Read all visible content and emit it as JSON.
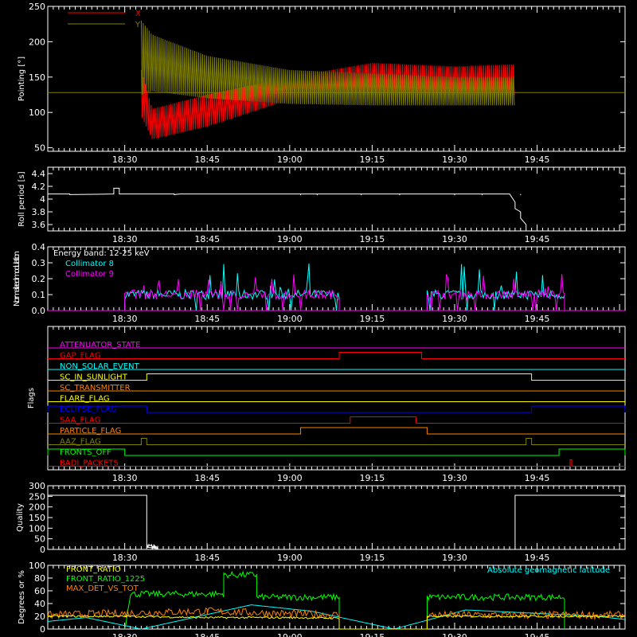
{
  "time_ticks": [
    "18:30",
    "18:45",
    "19:00",
    "19:15",
    "19:30",
    "19:45"
  ],
  "chart_data": [
    {
      "id": "pointing",
      "type": "line",
      "ylabel": "Pointing [°]",
      "ylim": [
        45,
        250
      ],
      "yticks": [
        50,
        100,
        150,
        200,
        250
      ],
      "xlim": [
        "18:16",
        "20:01"
      ],
      "series": [
        {
          "name": "X",
          "color": "#ff0000",
          "envelope": {
            "x": [
              "18:33",
              "18:35",
              "18:45",
              "19:00",
              "19:15",
              "19:30",
              "19:41"
            ],
            "max": [
              160,
              105,
              125,
              150,
              170,
              165,
              168
            ],
            "min": [
              95,
              62,
              80,
              118,
              130,
              125,
              125
            ]
          }
        },
        {
          "name": "Y",
          "color": "#808000",
          "envelope": {
            "x": [
              "18:33",
              "18:35",
              "18:45",
              "19:00",
              "19:15",
              "19:30",
              "19:41"
            ],
            "max": [
              230,
              210,
              180,
              160,
              155,
              150,
              150
            ],
            "min": [
              125,
              130,
              120,
              112,
              110,
              110,
              110
            ]
          }
        }
      ],
      "reference_line": {
        "value": 128,
        "color": "#808000"
      }
    },
    {
      "id": "roll",
      "type": "line",
      "ylabel": "Roll period [s]",
      "ylim": [
        3.5,
        4.5
      ],
      "yticks": [
        3.6,
        3.8,
        4.0,
        4.2,
        4.4
      ],
      "series": [
        {
          "name": "",
          "color": "#ffffff",
          "x": [
            "18:16",
            "18:20",
            "18:20",
            "18:28",
            "18:28",
            "18:28",
            "18:29",
            "18:29",
            "18:39",
            "18:39",
            "18:40",
            "19:40",
            "19:41",
            "19:41",
            "19:42",
            "19:42",
            "19:43",
            "19:43"
          ],
          "y": [
            4.08,
            4.08,
            4.07,
            4.08,
            4.17,
            4.17,
            4.17,
            4.08,
            4.08,
            4.07,
            4.08,
            4.08,
            3.95,
            3.85,
            3.8,
            3.7,
            3.6,
            3.55
          ]
        }
      ]
    },
    {
      "id": "modulation",
      "type": "line",
      "ylabel": "Normalized modulation",
      "ylim": [
        0,
        0.4
      ],
      "yticks": [
        "0.0",
        "0.1",
        "0.2",
        "0.3",
        "0.4"
      ],
      "annotations": [
        "Energy band: 12-25 keV"
      ],
      "series": [
        {
          "name": "Collimator 8",
          "color": "#00ffff",
          "segments": [
            [
              "18:30",
              "19:09"
            ],
            [
              "19:25",
              "19:50"
            ]
          ],
          "base": 0.1,
          "spikes": [
            0.28,
            0.3,
            0.2
          ]
        },
        {
          "name": "Collimator 9",
          "color": "#ff00ff",
          "segments": [
            [
              "18:30",
              "19:09"
            ],
            [
              "19:25",
              "19:50"
            ]
          ],
          "base": 0.1,
          "spikes": [
            0.25,
            0.22,
            0.28
          ]
        }
      ]
    },
    {
      "id": "flags",
      "type": "line",
      "ylabel": "Flags",
      "series": [
        {
          "name": "ATTENUATOR_STATE",
          "color": "#ff00ff",
          "on": []
        },
        {
          "name": "GAP_FLAG",
          "color": "#ff0000",
          "on": [
            [
              "19:09",
              "19:24"
            ]
          ]
        },
        {
          "name": "NON_SOLAR_EVENT",
          "color": "#00ffff",
          "on": []
        },
        {
          "name": "SC_IN_SUNLIGHT",
          "color": "#ffff00",
          "on": [
            [
              "18:34",
              "19:44"
            ]
          ]
        },
        {
          "name": "SC_TRANSMITTER",
          "color": "#ff8000",
          "on": []
        },
        {
          "name": "FLARE_FLAG",
          "color": "#ffff00",
          "on": []
        },
        {
          "name": "ECLIPSE_FLAG",
          "color": "#0000ff",
          "on": [
            [
              "18:16",
              "18:34"
            ],
            [
              "19:44",
              "20:01"
            ]
          ]
        },
        {
          "name": "SAA_FLAG",
          "color": "#ff0000",
          "on": [
            [
              "19:11",
              "19:23"
            ]
          ]
        },
        {
          "name": "PARTICLE_FLAG",
          "color": "#ff8000",
          "on": [
            [
              "19:02",
              "19:25"
            ]
          ]
        },
        {
          "name": "AAZ_FLAG",
          "color": "#808000",
          "on": [
            [
              "18:33",
              "18:34"
            ],
            [
              "19:43",
              "19:44"
            ]
          ]
        },
        {
          "name": "FRONTS_OFF",
          "color": "#00ff00",
          "on": [
            [
              "18:16",
              "18:30"
            ],
            [
              "19:49",
              "20:01"
            ]
          ]
        },
        {
          "name": "BADI_PACKETS",
          "color": "#ff0000",
          "on": [
            [
              "19:51",
              "19:51"
            ]
          ]
        }
      ]
    },
    {
      "id": "quality",
      "type": "line",
      "ylabel": "Quality",
      "ylim": [
        0,
        300
      ],
      "yticks": [
        0,
        50,
        100,
        150,
        200,
        250,
        300
      ],
      "series": [
        {
          "name": "",
          "color": "#ffffff",
          "x": [
            "18:16",
            "18:34",
            "18:34",
            "18:35",
            "18:36",
            "18:36",
            "19:41",
            "19:41",
            "20:01"
          ],
          "y": [
            255,
            255,
            10,
            8,
            3,
            0,
            0,
            255,
            255
          ]
        }
      ]
    },
    {
      "id": "geomag",
      "type": "line",
      "ylabel": "Degrees or %",
      "ylim": [
        0,
        100
      ],
      "yticks": [
        0,
        20,
        40,
        60,
        80,
        100
      ],
      "annotations": [
        "Absolute geomagnetic latitude"
      ],
      "series": [
        {
          "name": "FRONT_RATIO",
          "color": "#ffff00",
          "x": [
            "18:16",
            "18:30",
            "18:45",
            "19:00",
            "19:09",
            "19:09",
            "19:25",
            "19:25",
            "19:40",
            "20:01"
          ],
          "y": [
            20,
            20,
            18,
            18,
            17,
            0,
            0,
            20,
            20,
            20
          ]
        },
        {
          "name": "FRONT_RATIO_1225",
          "color": "#00ff00",
          "x": [
            "18:30",
            "18:31",
            "18:48",
            "18:48",
            "18:54",
            "18:54",
            "19:09",
            "19:09",
            "19:25",
            "19:25",
            "19:50",
            "19:50"
          ],
          "y": [
            0,
            55,
            55,
            85,
            85,
            50,
            50,
            0,
            0,
            50,
            50,
            0
          ]
        },
        {
          "name": "MAX_DET_VS_TOT",
          "color": "#ff8000",
          "x": [
            "18:16",
            "18:30",
            "18:45",
            "19:00",
            "19:09",
            "19:09",
            "19:25",
            "19:25",
            "19:40",
            "20:01"
          ],
          "y": [
            22,
            25,
            28,
            24,
            22,
            0,
            0,
            22,
            22,
            22
          ]
        },
        {
          "name": "",
          "color": "#00ffff",
          "x": [
            "18:16",
            "18:23",
            "18:33",
            "18:53",
            "19:04",
            "19:19",
            "19:32",
            "19:56",
            "20:01"
          ],
          "y": [
            12,
            18,
            0,
            38,
            28,
            0,
            30,
            20,
            15
          ]
        }
      ]
    }
  ]
}
